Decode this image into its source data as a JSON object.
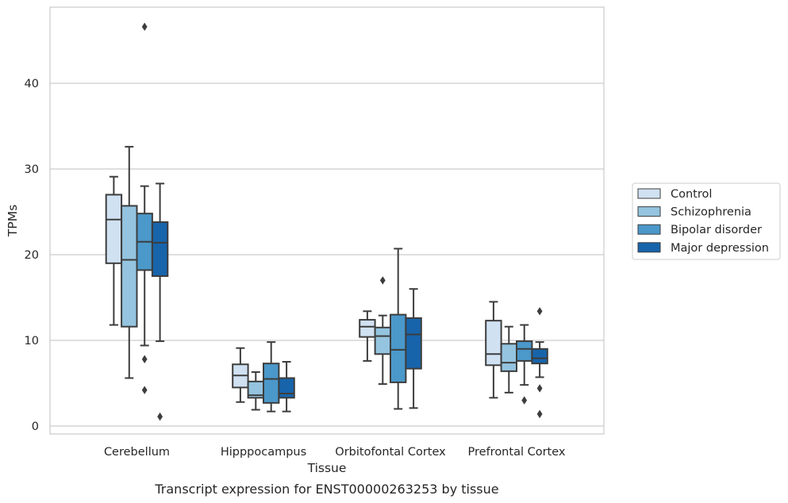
{
  "chart_data": {
    "type": "box",
    "caption": "Transcript expression for ENST00000263253 by tissue",
    "xlabel": "Tissue",
    "ylabel": "TPMs",
    "ylim": [
      -1,
      49
    ],
    "yticks": [
      0,
      10,
      20,
      30,
      40
    ],
    "grid": "horizontal",
    "legend_position": "right",
    "categories": [
      "Cerebellum",
      "Hipppocampus",
      "Orbitofontal Cortex",
      "Prefrontal Cortex"
    ],
    "series": [
      {
        "name": "Control",
        "color": "#d0e1f2",
        "boxes": [
          {
            "whisker_low": 11.8,
            "q1": 19.0,
            "median": 24.1,
            "q3": 27.0,
            "whisker_high": 29.1,
            "outliers": []
          },
          {
            "whisker_low": 2.8,
            "q1": 4.5,
            "median": 5.9,
            "q3": 7.2,
            "whisker_high": 9.1,
            "outliers": []
          },
          {
            "whisker_low": 7.6,
            "q1": 10.4,
            "median": 11.6,
            "q3": 12.4,
            "whisker_high": 13.4,
            "outliers": []
          },
          {
            "whisker_low": 3.3,
            "q1": 7.1,
            "median": 8.4,
            "q3": 12.3,
            "whisker_high": 14.5,
            "outliers": []
          }
        ]
      },
      {
        "name": "Schizophrenia",
        "color": "#94c4df",
        "boxes": [
          {
            "whisker_low": 5.6,
            "q1": 11.6,
            "median": 19.4,
            "q3": 25.7,
            "whisker_high": 32.6,
            "outliers": []
          },
          {
            "whisker_low": 1.9,
            "q1": 3.3,
            "median": 3.6,
            "q3": 5.2,
            "whisker_high": 6.3,
            "outliers": []
          },
          {
            "whisker_low": 4.9,
            "q1": 8.4,
            "median": 10.5,
            "q3": 11.5,
            "whisker_high": 12.9,
            "outliers": [
              17.0
            ]
          },
          {
            "whisker_low": 3.9,
            "q1": 6.4,
            "median": 7.4,
            "q3": 9.6,
            "whisker_high": 11.6,
            "outliers": []
          }
        ]
      },
      {
        "name": "Bipolar disorder",
        "color": "#4b98ca",
        "boxes": [
          {
            "whisker_low": 9.4,
            "q1": 18.2,
            "median": 21.5,
            "q3": 24.8,
            "whisker_high": 28.0,
            "outliers": [
              46.6,
              7.8,
              4.2
            ]
          },
          {
            "whisker_low": 1.7,
            "q1": 2.7,
            "median": 5.5,
            "q3": 7.3,
            "whisker_high": 9.8,
            "outliers": []
          },
          {
            "whisker_low": 2.0,
            "q1": 5.1,
            "median": 8.9,
            "q3": 13.0,
            "whisker_high": 20.7,
            "outliers": []
          },
          {
            "whisker_low": 4.8,
            "q1": 7.6,
            "median": 9.0,
            "q3": 9.9,
            "whisker_high": 11.8,
            "outliers": [
              3.0
            ]
          }
        ]
      },
      {
        "name": "Major depression",
        "color": "#1764ab",
        "boxes": [
          {
            "whisker_low": 9.9,
            "q1": 17.5,
            "median": 21.4,
            "q3": 23.8,
            "whisker_high": 28.3,
            "outliers": [
              1.1
            ]
          },
          {
            "whisker_low": 1.7,
            "q1": 3.3,
            "median": 3.8,
            "q3": 5.6,
            "whisker_high": 7.5,
            "outliers": []
          },
          {
            "whisker_low": 2.1,
            "q1": 6.7,
            "median": 10.7,
            "q3": 12.6,
            "whisker_high": 16.0,
            "outliers": []
          },
          {
            "whisker_low": 5.7,
            "q1": 7.3,
            "median": 7.9,
            "q3": 9.0,
            "whisker_high": 9.8,
            "outliers": [
              13.4,
              4.4,
              1.4
            ]
          }
        ]
      }
    ]
  }
}
